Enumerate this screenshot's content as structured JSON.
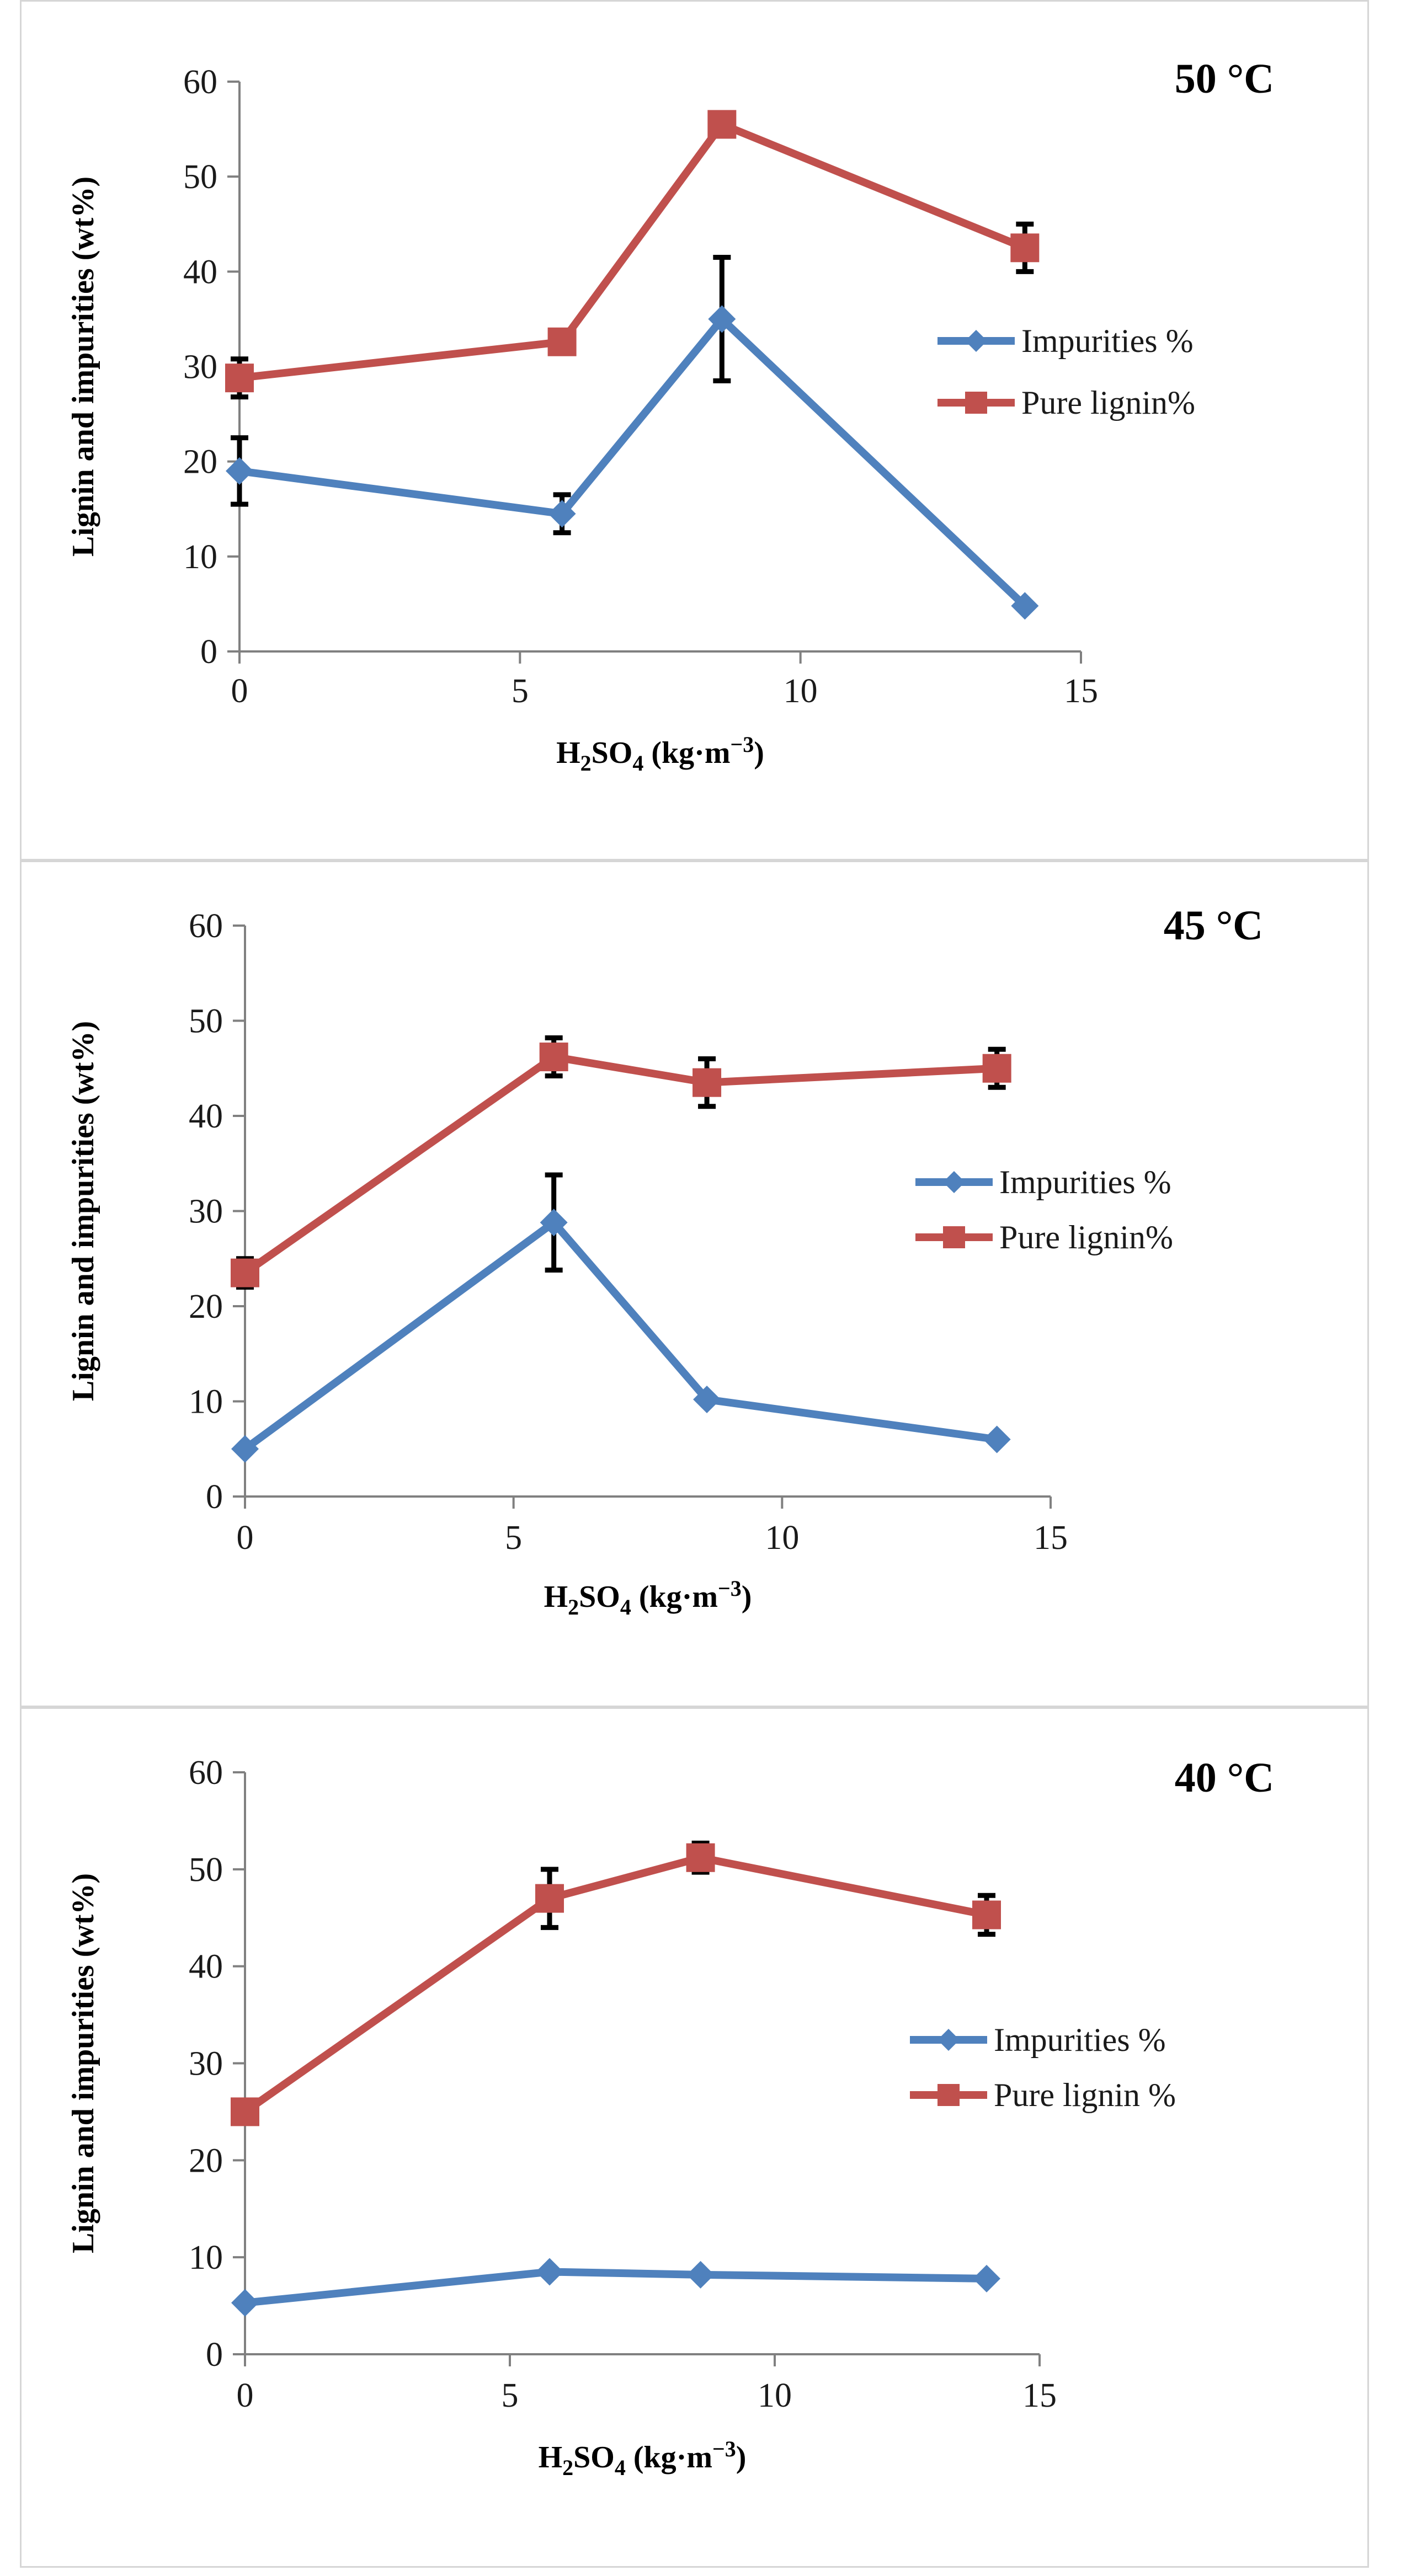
{
  "chart_data": [
    {
      "type": "line",
      "title": "50 °C",
      "ylabel": "Lignin and impurities (wt%)",
      "xlabel": {
        "prefix": "H",
        "sub1": "2",
        "mid": "SO",
        "sub2": "4",
        "suffix": " (kg·m",
        "sup": "−3",
        "end": ")"
      },
      "xlim": [
        0,
        15
      ],
      "ylim": [
        0,
        60
      ],
      "xticks": [
        0,
        5,
        10,
        15
      ],
      "yticks": [
        0,
        10,
        20,
        30,
        40,
        50,
        60
      ],
      "series": [
        {
          "name": "Impurities %",
          "color": "#4f81bd",
          "marker": "diamond",
          "x": [
            0,
            5.75,
            8.6,
            14
          ],
          "y": [
            19,
            14.5,
            35,
            4.8
          ],
          "err": [
            3.5,
            2,
            6.5,
            0
          ]
        },
        {
          "name": "Pure lignin%",
          "color": "#c0504d",
          "marker": "square",
          "x": [
            0,
            5.75,
            8.6,
            14
          ],
          "y": [
            28.8,
            32.6,
            55.5,
            42.5
          ],
          "err": [
            2,
            0,
            0,
            2.5
          ]
        }
      ]
    },
    {
      "type": "line",
      "title": "45 °C",
      "ylabel": "Lignin and impurities (wt%)",
      "xlabel": {
        "prefix": "H",
        "sub1": "2",
        "mid": "SO",
        "sub2": "4",
        "suffix": " (kg·m",
        "sup": "−3",
        "end": ")"
      },
      "xlim": [
        0,
        15
      ],
      "ylim": [
        0,
        60
      ],
      "xticks": [
        0,
        5,
        10,
        15
      ],
      "yticks": [
        0,
        10,
        20,
        30,
        40,
        50,
        60
      ],
      "series": [
        {
          "name": "Impurities %",
          "color": "#4f81bd",
          "marker": "diamond",
          "x": [
            0,
            5.75,
            8.6,
            14
          ],
          "y": [
            5,
            28.8,
            10.2,
            6
          ],
          "err": [
            0,
            5,
            0,
            0
          ]
        },
        {
          "name": "Pure lignin%",
          "color": "#c0504d",
          "marker": "square",
          "x": [
            0,
            5.75,
            8.6,
            14
          ],
          "y": [
            23.5,
            46.2,
            43.5,
            45
          ],
          "err": [
            1.5,
            2,
            2.5,
            2
          ]
        }
      ]
    },
    {
      "type": "line",
      "title": "40 °C",
      "ylabel": "Lignin and impurities (wt%)",
      "xlabel": {
        "prefix": "H",
        "sub1": "2",
        "mid": "SO",
        "sub2": "4",
        "suffix": " (kg·m",
        "sup": "−3",
        "end": ")"
      },
      "xlim": [
        0,
        15
      ],
      "ylim": [
        0,
        60
      ],
      "xticks": [
        0,
        5,
        10,
        15
      ],
      "yticks": [
        0,
        10,
        20,
        30,
        40,
        50,
        60
      ],
      "series": [
        {
          "name": "Impurities %",
          "color": "#4f81bd",
          "marker": "diamond",
          "x": [
            0,
            5.75,
            8.6,
            14
          ],
          "y": [
            5.3,
            8.5,
            8.2,
            7.8
          ],
          "err": [
            0,
            0,
            0,
            0
          ]
        },
        {
          "name": "Pure lignin %",
          "color": "#c0504d",
          "marker": "square",
          "x": [
            0,
            5.75,
            8.6,
            14
          ],
          "y": [
            25,
            47,
            51.2,
            45.3
          ],
          "err": [
            0,
            3,
            1.5,
            2
          ]
        }
      ]
    }
  ]
}
